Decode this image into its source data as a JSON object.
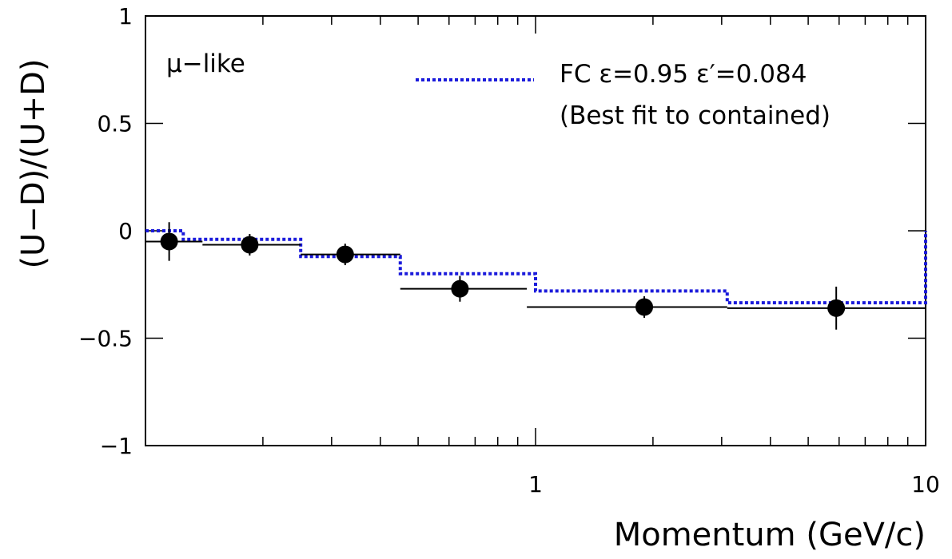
{
  "chart_data": {
    "type": "scatter",
    "title": "",
    "xlabel": "Momentum (GeV/c)",
    "ylabel": "(U−D)/(U+D)",
    "x_scale": "log",
    "xlim": [
      0.1,
      10
    ],
    "ylim": [
      -1,
      1
    ],
    "x_tick_labels": [
      {
        "value": 1,
        "label": "1"
      },
      {
        "value": 10,
        "label": "10"
      }
    ],
    "y_tick_labels": [
      {
        "value": 1,
        "label": "1"
      },
      {
        "value": 0.5,
        "label": "0.5"
      },
      {
        "value": 0,
        "label": "0"
      },
      {
        "value": -0.5,
        "label": "−0.5"
      },
      {
        "value": -1,
        "label": "−1"
      }
    ],
    "grid": false,
    "annotation": "μ−like",
    "legend": {
      "placement": "top-right",
      "entries": [
        {
          "line1": "FC ε=0.95 ε′=0.084",
          "line2": "(Best fit to contained)",
          "style": "dotted",
          "color": "#1a1adb"
        }
      ]
    },
    "data_series": {
      "color": "#000000",
      "points": [
        {
          "x": 0.115,
          "y": -0.05,
          "x_low": 0.1,
          "x_high": 0.14,
          "y_err": 0.09
        },
        {
          "x": 0.185,
          "y": -0.065,
          "x_low": 0.14,
          "x_high": 0.25,
          "y_err": 0.05
        },
        {
          "x": 0.325,
          "y": -0.11,
          "x_low": 0.25,
          "x_high": 0.45,
          "y_err": 0.05
        },
        {
          "x": 0.64,
          "y": -0.27,
          "x_low": 0.45,
          "x_high": 0.95,
          "y_err": 0.06
        },
        {
          "x": 1.9,
          "y": -0.355,
          "x_low": 0.95,
          "x_high": 3.1,
          "y_err": 0.05
        },
        {
          "x": 5.9,
          "y": -0.36,
          "x_low": 3.1,
          "x_high": 10,
          "y_err": 0.1
        }
      ]
    },
    "mc_series": {
      "name": "FC ε=0.95 ε′=0.084",
      "color": "#1a1adb",
      "bins": [
        {
          "x_low": 0.1,
          "x_high": 0.125,
          "y": 0.0
        },
        {
          "x_low": 0.125,
          "x_high": 0.25,
          "y": -0.04
        },
        {
          "x_low": 0.25,
          "x_high": 0.45,
          "y": -0.12
        },
        {
          "x_low": 0.45,
          "x_high": 1.0,
          "y": -0.2
        },
        {
          "x_low": 1.0,
          "x_high": 3.1,
          "y": -0.28
        },
        {
          "x_low": 3.1,
          "x_high": 10,
          "y": -0.335
        }
      ]
    }
  }
}
